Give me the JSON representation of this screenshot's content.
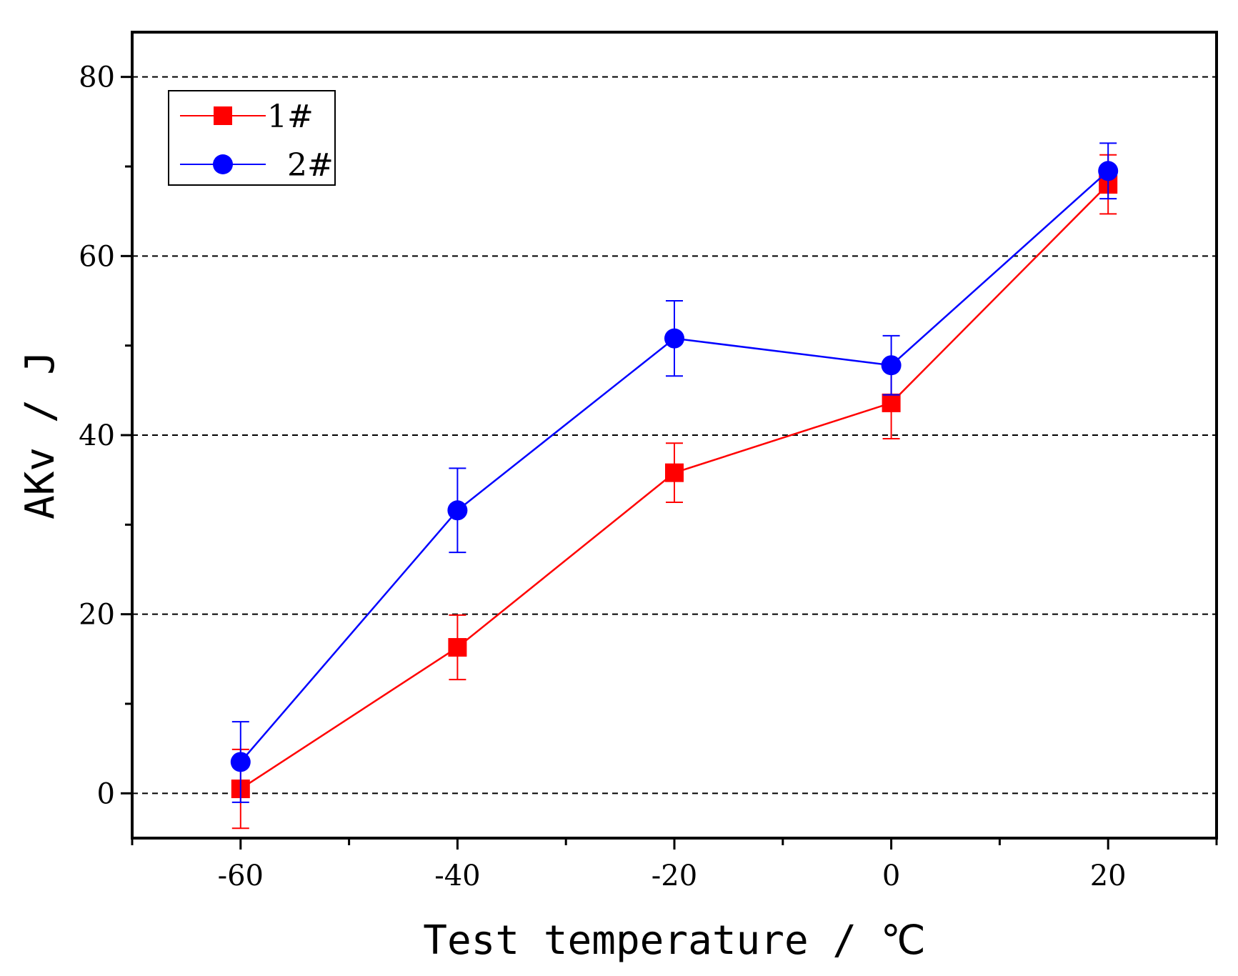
{
  "chart_data": {
    "type": "line",
    "title": "",
    "xlabel": "Test temperature / ℃",
    "ylabel": "AKv / J",
    "xlim": [
      -70,
      30
    ],
    "ylim": [
      -5,
      85
    ],
    "x_ticks": [
      -60,
      -40,
      -20,
      0,
      20
    ],
    "x_tick_labels": [
      "-60",
      "-40",
      "-20",
      "0",
      "20"
    ],
    "x_minor_ticks": [
      -70,
      -50,
      -30,
      -10,
      10,
      30
    ],
    "y_ticks": [
      0,
      20,
      40,
      60,
      80
    ],
    "y_tick_labels": [
      "0",
      "20",
      "40",
      "60",
      "80"
    ],
    "y_minor_ticks": [
      10,
      30,
      50,
      70
    ],
    "gridlines_y": [
      0,
      20,
      40,
      60,
      80
    ],
    "grid": "horizontal dashed",
    "legend_position": "top-left",
    "x": [
      -60,
      -40,
      -20,
      0,
      20
    ],
    "series": [
      {
        "name": "1#",
        "color": "#ff0000",
        "marker": "square",
        "values": [
          0.5,
          16.3,
          35.8,
          43.6,
          68.0
        ],
        "errors": [
          4.4,
          3.6,
          3.3,
          4.0,
          3.3
        ]
      },
      {
        "name": "2#",
        "color": "#0000ff",
        "marker": "circle",
        "values": [
          3.5,
          31.6,
          50.8,
          47.8,
          69.5
        ],
        "errors": [
          4.5,
          4.7,
          4.2,
          3.3,
          3.1
        ]
      }
    ]
  }
}
